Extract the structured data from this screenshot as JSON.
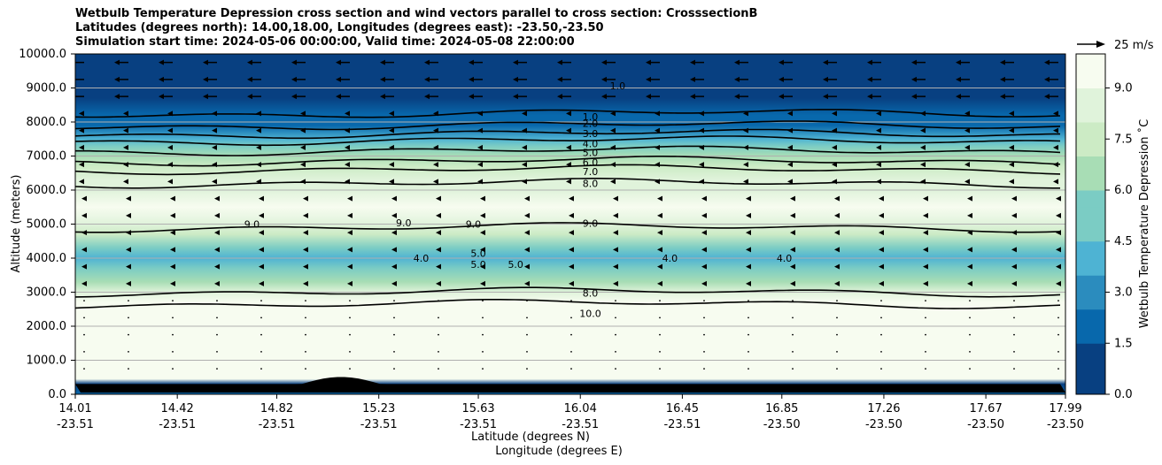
{
  "title_lines": [
    "Wetbulb Temperature Depression cross section and wind vectors parallel to cross section: CrosssectionB",
    "Latitudes (degrees north): 14.00,18.00, Longitudes (degrees east): -23.50,-23.50",
    "Simulation start time: 2024-05-06 00:00:00, Valid time: 2024-05-08 22:00:00"
  ],
  "chart_data": {
    "type": "heatmap",
    "xlabel_lat": "Latitude (degrees N)",
    "xlabel_lon": "Longitude (degrees E)",
    "ylabel": "Altitude (meters)",
    "colorbar_label": "Wetbulb Temperature Depression $^\\circ$C",
    "colorbar_label_display": "Wetbulb Temperature Depression ˚C",
    "quiver_key": "25 m/s",
    "xlim": [
      14.01,
      17.99
    ],
    "ylim": [
      0,
      10000
    ],
    "x_ticks_lat": [
      "14.01",
      "14.42",
      "14.82",
      "15.23",
      "15.63",
      "16.04",
      "16.45",
      "16.85",
      "17.26",
      "17.67",
      "17.99"
    ],
    "x_ticks_lon": [
      "-23.51",
      "-23.51",
      "-23.51",
      "-23.51",
      "-23.51",
      "-23.51",
      "-23.51",
      "-23.50",
      "-23.50",
      "-23.50",
      "-23.50"
    ],
    "x_tick_values": [
      14.01,
      14.42,
      14.82,
      15.23,
      15.63,
      16.04,
      16.45,
      16.85,
      17.26,
      17.67,
      17.99
    ],
    "y_ticks": [
      "0.0",
      "1000.0",
      "2000.0",
      "3000.0",
      "4000.0",
      "5000.0",
      "6000.0",
      "7000.0",
      "8000.0",
      "9000.0",
      "10000.0"
    ],
    "y_tick_values": [
      0,
      1000,
      2000,
      3000,
      4000,
      5000,
      6000,
      7000,
      8000,
      9000,
      10000
    ],
    "colorbar_ticks": [
      "0.0",
      "1.5",
      "3.0",
      "4.5",
      "6.0",
      "7.5",
      "9.0"
    ],
    "colorbar_tick_values": [
      0,
      1.5,
      3,
      4.5,
      6,
      7.5,
      9
    ],
    "colorbar_range": [
      0,
      10
    ],
    "colormap": [
      "#084081",
      "#0868ac",
      "#2b8cbe",
      "#4eb3d3",
      "#7bccc4",
      "#a8ddb5",
      "#ccebc5",
      "#e0f3db",
      "#f7fcf0"
    ],
    "grid": true,
    "contour_labels": [
      "1.0",
      "1.0",
      "2.0",
      "3.0",
      "4.0",
      "5.0",
      "6.0",
      "7.0",
      "8.0",
      "9.0",
      "9.0",
      "9.0",
      "9.0",
      "5.0",
      "5.0",
      "5.0",
      "4.0",
      "4.0",
      "4.0",
      "8.0",
      "10.0"
    ],
    "depression_profile": [
      {
        "altitude": 0,
        "value": 1.5
      },
      {
        "altitude": 300,
        "value": 1.0
      },
      {
        "altitude": 450,
        "value": 10.0
      },
      {
        "altitude": 2400,
        "value": 10.0
      },
      {
        "altitude": 2700,
        "value": 9.8
      },
      {
        "altitude": 3000,
        "value": 8.0
      },
      {
        "altitude": 3300,
        "value": 6.5
      },
      {
        "altitude": 3700,
        "value": 5.0
      },
      {
        "altitude": 4000,
        "value": 4.2
      },
      {
        "altitude": 4300,
        "value": 5.0
      },
      {
        "altitude": 4700,
        "value": 7.0
      },
      {
        "altitude": 5000,
        "value": 8.8
      },
      {
        "altitude": 5500,
        "value": 9.2
      },
      {
        "altitude": 6000,
        "value": 8.7
      },
      {
        "altitude": 6300,
        "value": 8.0
      },
      {
        "altitude": 6700,
        "value": 7.0
      },
      {
        "altitude": 7000,
        "value": 6.0
      },
      {
        "altitude": 7300,
        "value": 5.0
      },
      {
        "altitude": 7500,
        "value": 4.0
      },
      {
        "altitude": 7700,
        "value": 3.0
      },
      {
        "altitude": 7900,
        "value": 2.0
      },
      {
        "altitude": 8200,
        "value": 1.2
      },
      {
        "altitude": 8700,
        "value": 0.9
      },
      {
        "altitude": 9300,
        "value": 1.0
      },
      {
        "altitude": 10000,
        "value": 0.4
      }
    ],
    "contour_levels": [
      {
        "value": 1.0,
        "altitude": 8250
      },
      {
        "value": 2.0,
        "altitude": 7900
      },
      {
        "value": 3.0,
        "altitude": 7650
      },
      {
        "value": 4.0,
        "altitude": 7450
      },
      {
        "value": 5.0,
        "altitude": 7150
      },
      {
        "value": 6.0,
        "altitude": 6850
      },
      {
        "value": 7.0,
        "altitude": 6600
      },
      {
        "value": 8.0,
        "altitude": 6200
      },
      {
        "value": 9.0,
        "altitude": 4900
      },
      {
        "value": 8.0,
        "altitude": 3000
      },
      {
        "value": 10.0,
        "altitude": 2650
      }
    ],
    "wind_direction": "left (northerly component) aloft, weak near surface"
  }
}
